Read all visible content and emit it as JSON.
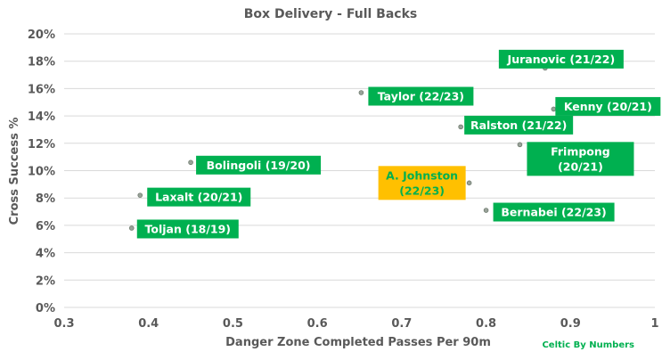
{
  "chart_data": {
    "type": "scatter",
    "title": "Box Delivery - Full Backs",
    "xlabel": "Danger Zone Completed Passes Per 90m",
    "ylabel": "Cross Success %",
    "xlim": [
      0.3,
      1.0
    ],
    "ylim": [
      0,
      20
    ],
    "x_ticks": [
      "0.3",
      "0.4",
      "0.5",
      "0.6",
      "0.7",
      "0.8",
      "0.9",
      "1"
    ],
    "y_ticks": [
      "0%",
      "2%",
      "4%",
      "6%",
      "8%",
      "10%",
      "12%",
      "14%",
      "16%",
      "18%",
      "20%"
    ],
    "grid": "horizontal",
    "points": [
      {
        "label": "Juranovic (21/22)",
        "x": 0.87,
        "y": 17.5,
        "color": "#00b050"
      },
      {
        "label": "Taylor (22/23)",
        "x": 0.652,
        "y": 15.7,
        "color": "#00b050"
      },
      {
        "label": "Kenny (20/21)",
        "x": 0.88,
        "y": 14.5,
        "color": "#00b050"
      },
      {
        "label": "Ralston (21/22)",
        "x": 0.77,
        "y": 13.2,
        "color": "#00b050"
      },
      {
        "label": "Frimpong (20/21)",
        "x": 0.84,
        "y": 11.9,
        "color": "#00b050"
      },
      {
        "label": "Bolingoli (19/20)",
        "x": 0.45,
        "y": 10.6,
        "color": "#00b050"
      },
      {
        "label": "A. Johnston (22/23)",
        "x": 0.78,
        "y": 9.1,
        "color": "#ffc000"
      },
      {
        "label": "Laxalt (20/21)",
        "x": 0.39,
        "y": 8.2,
        "color": "#00b050"
      },
      {
        "label": "Bernabei (22/23)",
        "x": 0.8,
        "y": 7.1,
        "color": "#00b050"
      },
      {
        "label": "Toljan (18/19)",
        "x": 0.38,
        "y": 5.8,
        "color": "#00b050"
      }
    ],
    "credit": "Celtic By Numbers"
  }
}
